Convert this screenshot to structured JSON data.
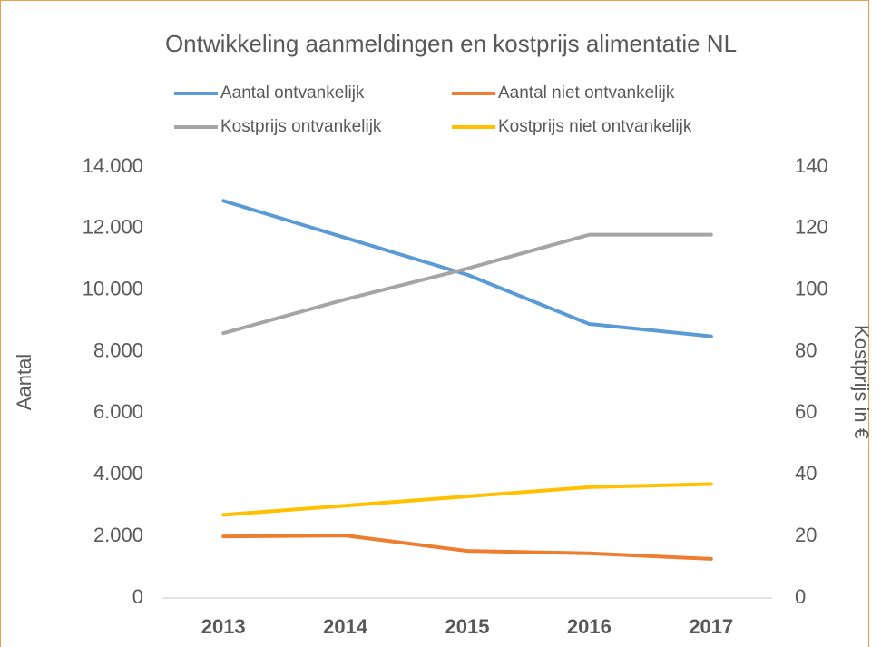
{
  "chart_data": {
    "type": "line",
    "title": "Ontwikkeling aanmeldingen en kostprijs alimentatie NL",
    "ylabel": "Aantal",
    "y2label": "Kostprijs in €",
    "categories": [
      "2013",
      "2014",
      "2015",
      "2016",
      "2017"
    ],
    "series": [
      {
        "name": "Aantal ontvankelijk",
        "color": "#5b9bd5",
        "values": [
          12900,
          11700,
          10500,
          8900,
          8500
        ]
      },
      {
        "name": "Aantal niet ontvankelijk",
        "color": "#ed7d31",
        "values": [
          2000,
          2030,
          1530,
          1450,
          1270
        ]
      },
      {
        "name": "Kostprijs ontvankelijk",
        "color": "#a5a5a5",
        "axis": "y2",
        "values": [
          86,
          97,
          107,
          118,
          118
        ]
      },
      {
        "name": "Kostprijs niet ontvankelijk",
        "color": "#ffc000",
        "axis": "y2",
        "values": [
          27,
          30,
          33,
          36,
          37
        ]
      }
    ],
    "ylim": [
      0,
      14000
    ],
    "yticks": [
      0,
      {
        "value": 2000,
        "label": "2.000"
      },
      {
        "value": 4000,
        "label": "4.000"
      },
      {
        "value": 6000,
        "label": "6.000"
      },
      {
        "value": 8000,
        "label": "8.000"
      },
      {
        "value": 10000,
        "label": "10.000"
      },
      {
        "value": 12000,
        "label": "12.000"
      },
      {
        "value": 14000,
        "label": "14.000"
      }
    ],
    "y2lim": [
      0,
      140
    ],
    "y2ticks": [
      0,
      20,
      40,
      60,
      80,
      100,
      120,
      140
    ],
    "grid": false,
    "legend": "top"
  }
}
